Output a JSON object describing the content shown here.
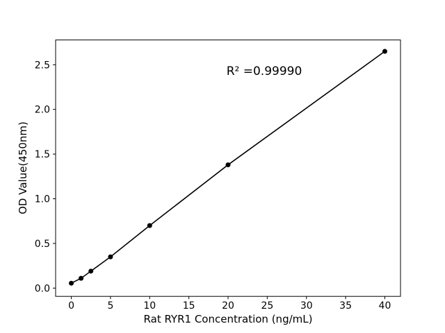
{
  "figure": {
    "background_color": "#ffffff",
    "foreground_color": "#000000"
  },
  "chart_data": {
    "type": "scatter",
    "title": "",
    "xlabel": "Rat RYR1 Concentration (ng/mL)",
    "ylabel": "OD Value(450nm)",
    "x": [
      0,
      1.25,
      2.5,
      5,
      10,
      20,
      40
    ],
    "y": [
      0.055,
      0.11,
      0.19,
      0.35,
      0.7,
      1.38,
      2.65
    ],
    "line_through_points": true,
    "marker": "circle",
    "marker_color": "#000000",
    "line_color": "#000000",
    "axis_color": "#000000",
    "xlim": [
      -2,
      42
    ],
    "ylim": [
      -0.0925,
      2.7775
    ],
    "xticks": {
      "values": [
        0,
        5,
        10,
        15,
        20,
        25,
        30,
        35,
        40
      ],
      "labels": [
        "0",
        "5",
        "10",
        "15",
        "20",
        "25",
        "30",
        "35",
        "40"
      ]
    },
    "yticks": {
      "values": [
        0.0,
        0.5,
        1.0,
        1.5,
        2.0,
        2.5
      ],
      "labels": [
        "0.0",
        "0.5",
        "1.0",
        "1.5",
        "2.0",
        "2.5"
      ]
    },
    "annotation": {
      "text": "R² =0.99990"
    },
    "grid": false,
    "legend": null
  }
}
